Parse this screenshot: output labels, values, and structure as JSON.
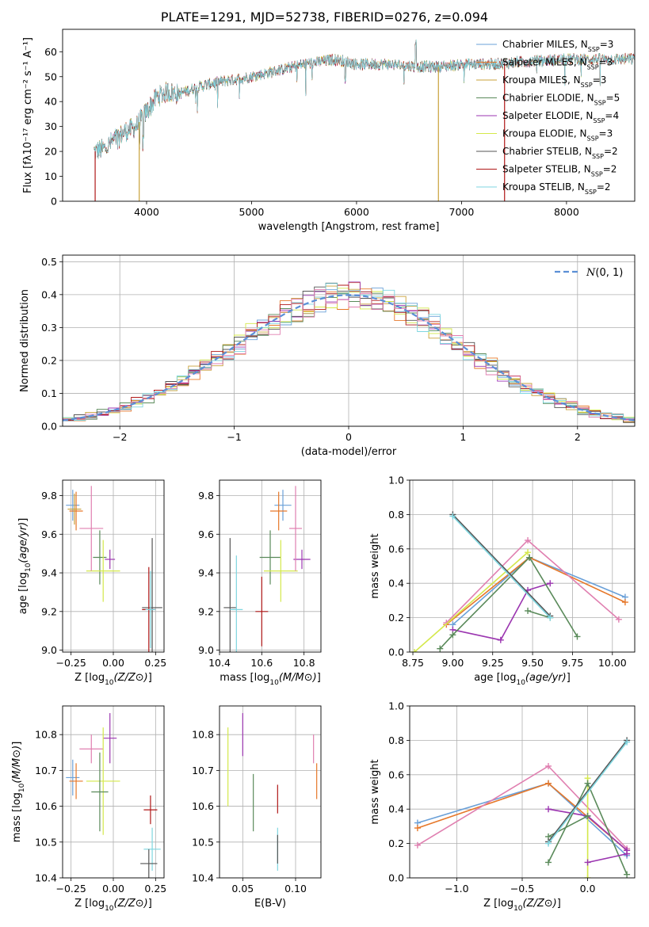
{
  "title": "PLATE=1291, MJD=52738, FIBERID=0276, z=0.094",
  "series": [
    {
      "name": "Chabrier MILES, N_SSP=3",
      "label": "Chabrier MILES, N",
      "sub": "SSP",
      "tail": "=3",
      "color": "#6aa0d8"
    },
    {
      "name": "Salpeter MILES, N_SSP=3",
      "label": "Salpeter MILES, N",
      "sub": "SSP",
      "tail": "=3",
      "color": "#e6782a"
    },
    {
      "name": "Kroupa MILES, N_SSP=3",
      "label": "Kroupa MILES, N",
      "sub": "SSP",
      "tail": "=3",
      "color": "#c9a13a"
    },
    {
      "name": "Chabrier ELODIE, N_SSP=5",
      "label": "Chabrier ELODIE, N",
      "sub": "SSP",
      "tail": "=5",
      "color": "#5a8a5a"
    },
    {
      "name": "Salpeter ELODIE, N_SSP=4",
      "label": "Salpeter ELODIE, N",
      "sub": "SSP",
      "tail": "=4",
      "color": "#9b35b0"
    },
    {
      "name": "Kroupa ELODIE, N_SSP=3",
      "label": "Kroupa ELODIE, N",
      "sub": "SSP",
      "tail": "=3",
      "color": "#d4e84a"
    },
    {
      "name": "Chabrier STELIB, N_SSP=2",
      "label": "Chabrier STELIB, N",
      "sub": "SSP",
      "tail": "=2",
      "color": "#555555"
    },
    {
      "name": "Salpeter STELIB, N_SSP=2",
      "label": "Salpeter STELIB, N",
      "sub": "SSP",
      "tail": "=2",
      "color": "#b01818"
    },
    {
      "name": "Kroupa STELIB, N_SSP=2",
      "label": "Kroupa STELIB, N",
      "sub": "SSP",
      "tail": "=2",
      "color": "#7fd6e0"
    }
  ],
  "chart_data": [
    {
      "type": "line",
      "id": "spectrum",
      "xlabel": "wavelength [Angstrom, rest frame]",
      "ylabel": "Flux [fλ10⁻¹⁷ erg cm⁻² s⁻¹ A⁻¹]",
      "xlim": [
        3200,
        8650
      ],
      "ylim": [
        0,
        69
      ],
      "xticks": [
        4000,
        5000,
        6000,
        7000,
        8000
      ],
      "yticks": [
        0,
        10,
        20,
        30,
        40,
        50,
        60
      ],
      "grid": false,
      "legend": "right",
      "spectrum_shape": {
        "wavelength": [
          3500,
          3600,
          3700,
          3800,
          3900,
          4000,
          4100,
          4200,
          4300,
          4500,
          4700,
          5000,
          5200,
          5500,
          5800,
          6000,
          6300,
          6600,
          6800,
          7000,
          7300,
          7600,
          8000,
          8300,
          8650
        ],
        "flux": [
          20,
          21,
          25,
          28,
          30,
          36,
          42,
          44,
          43,
          46,
          48,
          50,
          52,
          55,
          57,
          55,
          55,
          54,
          54,
          55,
          55,
          56,
          57,
          57,
          57
        ]
      },
      "cutoffs": [
        {
          "series": 7,
          "wavelength": 3510
        },
        {
          "series": 2,
          "wavelength": 3930
        },
        {
          "series": 2,
          "wavelength": 6780
        },
        {
          "series": 7,
          "wavelength": 7410
        }
      ]
    },
    {
      "type": "line",
      "id": "residuals",
      "xlabel": "(data-model)/error",
      "ylabel": "Normed distribution",
      "xlim": [
        -2.5,
        2.5
      ],
      "ylim": [
        0,
        0.52
      ],
      "xticks": [
        -2,
        -1,
        0,
        1,
        2
      ],
      "yticks": [
        0.0,
        0.1,
        0.2,
        0.3,
        0.4,
        0.5
      ],
      "grid": true,
      "legend": "top-right",
      "legend_label": "N(0,1)",
      "bin_width": 0.1,
      "reference_curve": "normal(0,1)"
    },
    {
      "type": "scatter",
      "id": "age_vs_Z",
      "xlabel": "Z [log10(Z/Z⊙)]",
      "ylabel": "age [log10(age/yr)]",
      "xlim": [
        -0.3,
        0.3
      ],
      "ylim": [
        8.99,
        9.88
      ],
      "xticks": [
        -0.25,
        0.0,
        0.25
      ],
      "yticks": [
        9.0,
        9.2,
        9.4,
        9.6,
        9.8
      ],
      "grid": true,
      "points": [
        {
          "series": 0,
          "x": -0.24,
          "xerr": 0.04,
          "y": 9.75,
          "yerr": 0.08
        },
        {
          "series": 1,
          "x": -0.22,
          "xerr": 0.04,
          "y": 9.72,
          "yerr": 0.1
        },
        {
          "series": 3,
          "x": -0.08,
          "xerr": 0.04,
          "y": 9.48,
          "yerr": 0.14
        },
        {
          "series": 4,
          "x": -0.02,
          "xerr": 0.03,
          "y": 9.47,
          "yerr": 0.05
        },
        {
          "series": 5,
          "x": -0.06,
          "xerr": 0.1,
          "y": 9.41,
          "yerr": 0.16
        },
        {
          "series": 6,
          "x": 0.23,
          "xerr": 0.06,
          "y": 9.22,
          "yerr": 0.36
        },
        {
          "series": 7,
          "x": 0.21,
          "xerr": 0.04,
          "y": 9.21,
          "yerr": 0.22
        },
        {
          "series": 8,
          "x": 0.22,
          "xerr": 0.03,
          "y": 9.21,
          "yerr": 0.2
        },
        {
          "series": 2,
          "x": -0.23,
          "xerr": 0.04,
          "y": 9.73,
          "yerr": 0.08
        },
        {
          "series": 9,
          "x": -0.13,
          "xerr": 0.07,
          "y": 9.63,
          "yerr": 0.22
        }
      ]
    },
    {
      "type": "scatter",
      "id": "age_vs_mass",
      "xlabel": "mass [log10(M/M⊙)]",
      "ylabel": "",
      "xlim": [
        10.4,
        10.88
      ],
      "ylim": [
        8.99,
        9.88
      ],
      "xticks": [
        10.4,
        10.6,
        10.8
      ],
      "yticks": [
        9.0,
        9.2,
        9.4,
        9.6,
        9.8
      ],
      "grid": true,
      "points": [
        {
          "series": 0,
          "x": 10.7,
          "xerr": 0.04,
          "y": 9.75,
          "yerr": 0.08
        },
        {
          "series": 1,
          "x": 10.68,
          "xerr": 0.04,
          "y": 9.72,
          "yerr": 0.1
        },
        {
          "series": 3,
          "x": 10.64,
          "xerr": 0.05,
          "y": 9.48,
          "yerr": 0.14
        },
        {
          "series": 4,
          "x": 10.79,
          "xerr": 0.04,
          "y": 9.47,
          "yerr": 0.05
        },
        {
          "series": 5,
          "x": 10.69,
          "xerr": 0.08,
          "y": 9.41,
          "yerr": 0.16
        },
        {
          "series": 6,
          "x": 10.45,
          "xerr": 0.03,
          "y": 9.22,
          "yerr": 0.36
        },
        {
          "series": 7,
          "x": 10.6,
          "xerr": 0.03,
          "y": 9.2,
          "yerr": 0.18
        },
        {
          "series": 8,
          "x": 10.48,
          "xerr": 0.03,
          "y": 9.21,
          "yerr": 0.28
        },
        {
          "series": 9,
          "x": 10.76,
          "xerr": 0.03,
          "y": 9.63,
          "yerr": 0.22
        }
      ]
    },
    {
      "type": "line",
      "id": "mass_weight_vs_age",
      "xlabel": "age [log10(age/yr)]",
      "ylabel": "mass weight",
      "xlim": [
        8.73,
        10.14
      ],
      "ylim": [
        0,
        1
      ],
      "xticks": [
        8.75,
        9.0,
        9.25,
        9.5,
        9.75,
        10.0
      ],
      "yticks": [
        0.0,
        0.2,
        0.4,
        0.6,
        0.8,
        1.0
      ],
      "grid": true,
      "lines": [
        {
          "series": 0,
          "x": [
            9.0,
            9.48,
            10.08
          ],
          "y": [
            0.16,
            0.55,
            0.32
          ]
        },
        {
          "series": 1,
          "x": [
            8.96,
            9.48,
            10.08
          ],
          "y": [
            0.16,
            0.55,
            0.29
          ]
        },
        {
          "series": 9,
          "x": [
            8.96,
            9.47,
            10.04
          ],
          "y": [
            0.17,
            0.65,
            0.19
          ]
        },
        {
          "series": 5,
          "x": [
            8.76,
            9.47
          ],
          "y": [
            0.0,
            0.58
          ]
        },
        {
          "series": 4,
          "x": [
            9.0,
            9.3,
            9.47,
            9.61
          ],
          "y": [
            0.13,
            0.07,
            0.36,
            0.4
          ]
        },
        {
          "series": 3,
          "x": [
            8.92,
            9.0,
            9.48,
            9.78
          ],
          "y": [
            0.02,
            0.1,
            0.55,
            0.09
          ]
        },
        {
          "series": 3,
          "x": [
            9.47,
            9.61
          ],
          "y": [
            0.24,
            0.2
          ]
        },
        {
          "series": 6,
          "x": [
            9.0,
            9.61
          ],
          "y": [
            0.8,
            0.21
          ]
        },
        {
          "series": 8,
          "x": [
            9.0,
            9.61
          ],
          "y": [
            0.79,
            0.2
          ]
        }
      ]
    },
    {
      "type": "scatter",
      "id": "mass_vs_Z",
      "xlabel": "Z [log10(Z/Z⊙)]",
      "ylabel": "mass [log10(M/M⊙)]",
      "xlim": [
        -0.3,
        0.3
      ],
      "ylim": [
        10.4,
        10.88
      ],
      "xticks": [
        -0.25,
        0.0,
        0.25
      ],
      "yticks": [
        10.4,
        10.5,
        10.6,
        10.7,
        10.8
      ],
      "grid": true,
      "points": [
        {
          "series": 0,
          "x": -0.24,
          "xerr": 0.04,
          "y": 10.68,
          "yerr": 0.05
        },
        {
          "series": 1,
          "x": -0.22,
          "xerr": 0.04,
          "y": 10.67,
          "yerr": 0.05
        },
        {
          "series": 9,
          "x": -0.13,
          "xerr": 0.07,
          "y": 10.76,
          "yerr": 0.04
        },
        {
          "series": 4,
          "x": -0.02,
          "xerr": 0.04,
          "y": 10.79,
          "yerr": 0.07
        },
        {
          "series": 5,
          "x": -0.06,
          "xerr": 0.1,
          "y": 10.67,
          "yerr": 0.15
        },
        {
          "series": 3,
          "x": -0.08,
          "xerr": 0.05,
          "y": 10.64,
          "yerr": 0.11
        },
        {
          "series": 7,
          "x": 0.22,
          "xerr": 0.04,
          "y": 10.59,
          "yerr": 0.04
        },
        {
          "series": 8,
          "x": 0.23,
          "xerr": 0.05,
          "y": 10.48,
          "yerr": 0.06
        },
        {
          "series": 6,
          "x": 0.21,
          "xerr": 0.05,
          "y": 10.44,
          "yerr": 0.04
        }
      ]
    },
    {
      "type": "scatter",
      "id": "mass_vs_ebv",
      "xlabel": "E(B-V)",
      "ylabel": "",
      "xlim": [
        0.028,
        0.124
      ],
      "ylim": [
        10.4,
        10.88
      ],
      "xticks": [
        0.05,
        0.1
      ],
      "yticks": [
        10.4,
        10.5,
        10.6,
        10.7,
        10.8
      ],
      "grid": true,
      "points": [
        {
          "series": 5,
          "x": 0.036,
          "y": 10.71,
          "yerr": 0.11
        },
        {
          "series": 4,
          "x": 0.05,
          "y": 10.8,
          "yerr": 0.06
        },
        {
          "series": 3,
          "x": 0.06,
          "y": 10.61,
          "yerr": 0.08
        },
        {
          "series": 7,
          "x": 0.083,
          "y": 10.62,
          "yerr": 0.04
        },
        {
          "series": 8,
          "x": 0.083,
          "y": 10.48,
          "yerr": 0.06
        },
        {
          "series": 6,
          "x": 0.083,
          "y": 10.48,
          "yerr": 0.04
        },
        {
          "series": 9,
          "x": 0.117,
          "y": 10.76,
          "yerr": 0.04
        },
        {
          "series": 1,
          "x": 0.12,
          "y": 10.67,
          "yerr": 0.05
        }
      ]
    },
    {
      "type": "line",
      "id": "mass_weight_vs_Z",
      "xlabel": "Z [log10(Z/Z⊙)]",
      "ylabel": "mass weight",
      "xlim": [
        -1.36,
        0.36
      ],
      "ylim": [
        0,
        1
      ],
      "xticks": [
        -1.0,
        -0.5,
        0.0
      ],
      "yticks": [
        0.0,
        0.2,
        0.4,
        0.6,
        0.8,
        1.0
      ],
      "grid": true,
      "lines": [
        {
          "series": 0,
          "x": [
            -1.3,
            -0.3,
            0.3
          ],
          "y": [
            0.32,
            0.55,
            0.13
          ]
        },
        {
          "series": 1,
          "x": [
            -1.3,
            -0.3,
            0.3
          ],
          "y": [
            0.29,
            0.55,
            0.16
          ]
        },
        {
          "series": 9,
          "x": [
            -1.3,
            -0.3,
            0.3
          ],
          "y": [
            0.19,
            0.65,
            0.17
          ]
        },
        {
          "series": 4,
          "x": [
            -0.3,
            0.0,
            0.3
          ],
          "y": [
            0.4,
            0.36,
            0.16
          ]
        },
        {
          "series": 5,
          "x": [
            0.0,
            0.0
          ],
          "y": [
            0.0,
            0.58
          ]
        },
        {
          "series": 3,
          "x": [
            -0.3,
            0.0,
            0.3
          ],
          "y": [
            0.09,
            0.55,
            0.02
          ]
        },
        {
          "series": 3,
          "x": [
            -0.3,
            0.0
          ],
          "y": [
            0.24,
            0.36
          ]
        },
        {
          "series": 6,
          "x": [
            -0.3,
            0.3
          ],
          "y": [
            0.21,
            0.8
          ]
        },
        {
          "series": 8,
          "x": [
            -0.3,
            0.3
          ],
          "y": [
            0.2,
            0.79
          ]
        },
        {
          "series": 4,
          "x": [
            0.0,
            0.3
          ],
          "y": [
            0.09,
            0.14
          ]
        }
      ]
    }
  ],
  "extra_colors": [
    "#e07fb0"
  ]
}
